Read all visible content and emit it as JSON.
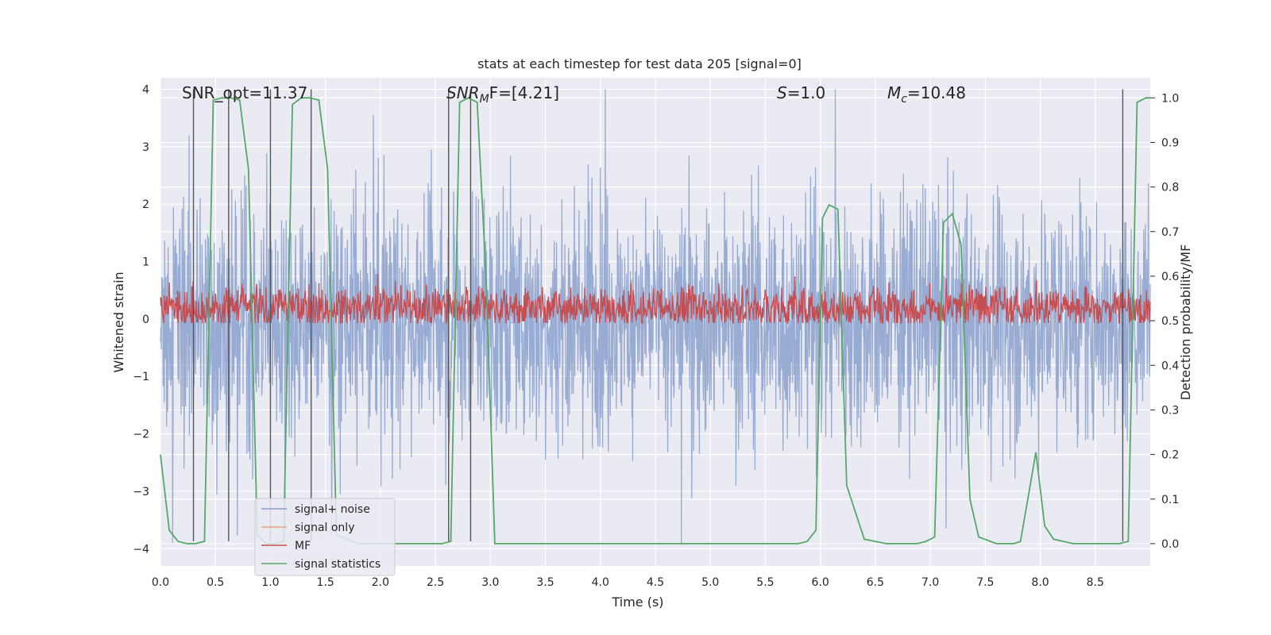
{
  "chart_data": {
    "type": "line",
    "title": "stats at each timestep for test data 205 [signal=0]",
    "xlabel": "Time (s)",
    "ylabel": "Whitened strain",
    "y2label": "Detection probability/MF",
    "xlim": [
      0,
      9.0
    ],
    "ylim": [
      -4.3,
      4.2
    ],
    "y2lim": [
      -0.05,
      1.045
    ],
    "x_ticks": [
      "0.0",
      "0.5",
      "1.0",
      "1.5",
      "2.0",
      "2.5",
      "3.0",
      "3.5",
      "4.0",
      "4.5",
      "5.0",
      "5.5",
      "6.0",
      "6.5",
      "7.0",
      "7.5",
      "8.0",
      "8.5"
    ],
    "y_ticks": [
      "4",
      "3",
      "2",
      "1",
      "0",
      "−1",
      "−2",
      "−3",
      "−4"
    ],
    "y2_ticks": [
      "1.0",
      "0.9",
      "0.8",
      "0.7",
      "0.6",
      "0.5",
      "0.4",
      "0.3",
      "0.2",
      "0.1",
      "0.0"
    ],
    "grid": true,
    "legend_position": "lower-left",
    "annotations": {
      "snr_opt": "SNR_opt=11.37",
      "snr_mf": {
        "sym": "SNR",
        "sub": "M",
        "rest": "F=[4.21]"
      },
      "s": {
        "sym": "S",
        "rest": "=1.0"
      },
      "mc": {
        "sym": "M",
        "sub": "c",
        "rest": "=10.48"
      }
    },
    "series": [
      {
        "name": "signal+ noise",
        "color": "#8aa0cc",
        "description_range": [
          -3.9,
          4.0
        ]
      },
      {
        "name": "signal only",
        "color": "#e8a282"
      },
      {
        "name": "MF",
        "color": "#c44e52",
        "range": [
          0.0,
          1.0
        ]
      },
      {
        "name": "signal statistics",
        "color": "#55a868",
        "x": [
          0.0,
          0.08,
          0.16,
          0.24,
          0.32,
          0.4,
          0.48,
          0.56,
          0.64,
          0.72,
          0.8,
          0.88,
          0.96,
          1.04,
          1.12,
          1.2,
          1.28,
          1.36,
          1.44,
          1.52,
          1.6,
          1.8,
          2.0,
          2.2,
          2.4,
          2.56,
          2.64,
          2.72,
          2.8,
          2.88,
          2.96,
          3.04,
          3.5,
          4.0,
          4.5,
          5.0,
          5.5,
          5.8,
          5.88,
          5.96,
          6.02,
          6.08,
          6.16,
          6.24,
          6.4,
          6.6,
          6.72,
          6.8,
          6.88,
          6.96,
          7.04,
          7.12,
          7.2,
          7.28,
          7.36,
          7.44,
          7.6,
          7.68,
          7.76,
          7.82,
          7.88,
          7.96,
          8.04,
          8.12,
          8.3,
          8.6,
          8.72,
          8.8,
          8.88,
          8.96,
          9.0
        ],
        "y": [
          0.2,
          0.03,
          0.005,
          0.0,
          0.0,
          0.005,
          0.995,
          1.0,
          1.0,
          0.995,
          0.84,
          0.02,
          0.0,
          0.0,
          0.005,
          0.985,
          1.0,
          1.0,
          0.995,
          0.84,
          0.02,
          0.0,
          0.0,
          0.0,
          0.0,
          0.0,
          0.005,
          0.99,
          1.0,
          0.99,
          0.6,
          0.0,
          0.0,
          0.0,
          0.0,
          0.0,
          0.0,
          0.0,
          0.005,
          0.03,
          0.73,
          0.76,
          0.75,
          0.13,
          0.01,
          0.0,
          0.0,
          0.0,
          0.0,
          0.005,
          0.015,
          0.72,
          0.74,
          0.67,
          0.1,
          0.015,
          0.0,
          0.0,
          0.0,
          0.005,
          0.09,
          0.205,
          0.04,
          0.01,
          0.0,
          0.0,
          0.0,
          0.005,
          0.99,
          1.0,
          1.0
        ]
      }
    ],
    "vertical_lines_x": [
      0.3,
      0.62,
      1.0,
      1.37,
      2.62,
      2.82,
      8.75
    ]
  }
}
